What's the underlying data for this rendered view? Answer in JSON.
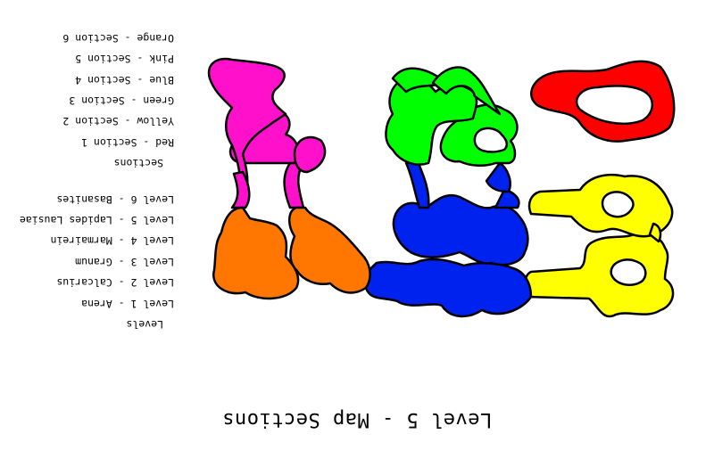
{
  "title": "Level 5 - Map Sections",
  "levels": {
    "heading": "Levels",
    "items": [
      "Level 1 - Arena",
      "Level 2 - Calcarius",
      "Level 3 - Granum",
      "Level 4 - Marmairein",
      "Level 5 - Lapides Lausiae",
      "Level 6 - Basanites"
    ]
  },
  "sections": {
    "heading": "Sections",
    "items": [
      "Red - Section 1",
      "Yellow - Section 2",
      "Green - Section 3",
      "Blue - Section 4",
      "Pink - Section 5",
      "Orange - Section 6"
    ]
  },
  "colors": {
    "red": "#ff0000",
    "yellow": "#ffff00",
    "green": "#00ff00",
    "blue": "#0022ee",
    "pink": "#ff11cc",
    "orange": "#ff7700"
  }
}
